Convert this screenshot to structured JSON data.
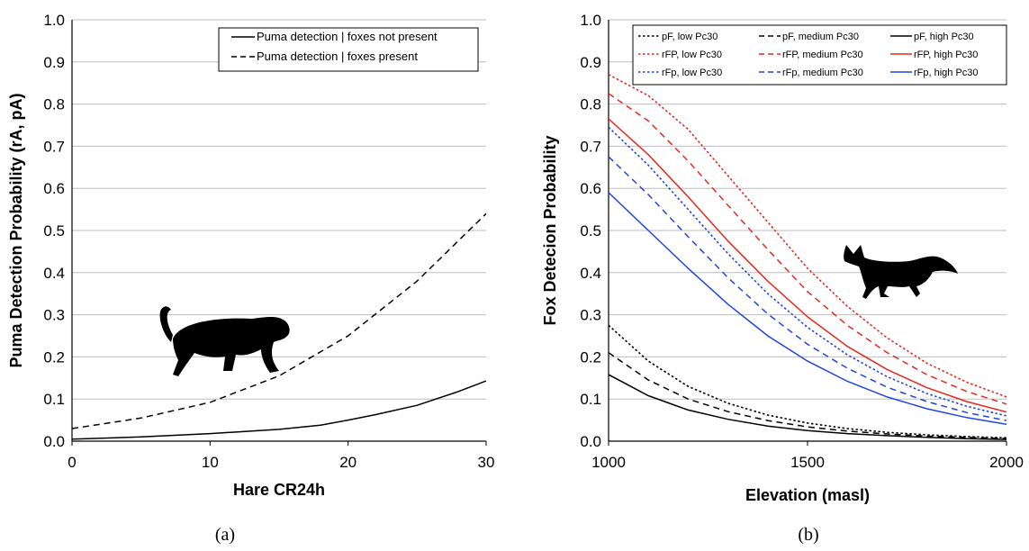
{
  "chart_data": [
    {
      "panel_label": "(a)",
      "type": "line",
      "xlabel": "Hare CR24h",
      "ylabel": "Puma Detection Probability (rA, pA)",
      "xlim": [
        0,
        30
      ],
      "ylim": [
        0,
        1
      ],
      "xticks": [
        "0",
        "10",
        "20",
        "30"
      ],
      "yticks": [
        "0.0",
        "0.1",
        "0.2",
        "0.3",
        "0.4",
        "0.5",
        "0.6",
        "0.7",
        "0.8",
        "0.9",
        "1.0"
      ],
      "grid": "horizontal",
      "legend_position": "top-right",
      "silhouette": "puma",
      "series": [
        {
          "name": "Puma detection | foxes not present",
          "color": "#000000",
          "dash": "solid",
          "x": [
            0,
            5,
            10,
            15,
            18,
            20,
            22,
            25,
            28,
            30
          ],
          "y": [
            0.005,
            0.01,
            0.018,
            0.028,
            0.038,
            0.05,
            0.063,
            0.085,
            0.118,
            0.143
          ]
        },
        {
          "name": "Puma detection |  foxes present",
          "color": "#000000",
          "dash": "dashed",
          "x": [
            0,
            5,
            10,
            15,
            20,
            25,
            30
          ],
          "y": [
            0.03,
            0.055,
            0.092,
            0.155,
            0.25,
            0.38,
            0.54
          ]
        }
      ]
    },
    {
      "panel_label": "(b)",
      "type": "line",
      "xlabel": "Elevation (masl)",
      "ylabel": "Fox Detecion Probability",
      "xlim": [
        1000,
        2000
      ],
      "ylim": [
        0,
        1
      ],
      "xticks": [
        "1000",
        "1500",
        "2000"
      ],
      "yticks": [
        "0.0",
        "0.1",
        "0.2",
        "0.3",
        "0.4",
        "0.5",
        "0.6",
        "0.7",
        "0.8",
        "0.9",
        "1.0"
      ],
      "grid": "horizontal",
      "legend_position": "top",
      "silhouette": "fox",
      "x": [
        1000,
        1100,
        1200,
        1300,
        1400,
        1500,
        1600,
        1700,
        1800,
        1900,
        2000
      ],
      "series": [
        {
          "name": "pF, low Pc30",
          "color": "#000000",
          "dash": "dotted",
          "y": [
            0.275,
            0.19,
            0.13,
            0.09,
            0.062,
            0.043,
            0.03,
            0.021,
            0.015,
            0.011,
            0.008
          ]
        },
        {
          "name": "pF, medium Pc30",
          "color": "#000000",
          "dash": "dashed",
          "y": [
            0.21,
            0.145,
            0.1,
            0.07,
            0.049,
            0.034,
            0.024,
            0.017,
            0.012,
            0.009,
            0.006
          ]
        },
        {
          "name": "pF, high Pc30",
          "color": "#000000",
          "dash": "solid",
          "y": [
            0.158,
            0.108,
            0.074,
            0.052,
            0.036,
            0.025,
            0.018,
            0.013,
            0.009,
            0.006,
            0.004
          ]
        },
        {
          "name": "rFP, low Pc30",
          "color": "#e8281e",
          "dash": "dotted",
          "y": [
            0.87,
            0.82,
            0.74,
            0.63,
            0.52,
            0.41,
            0.32,
            0.245,
            0.185,
            0.14,
            0.105
          ]
        },
        {
          "name": "rFP, medium Pc30",
          "color": "#e8281e",
          "dash": "dashed",
          "y": [
            0.825,
            0.76,
            0.665,
            0.56,
            0.455,
            0.355,
            0.275,
            0.21,
            0.158,
            0.118,
            0.088
          ]
        },
        {
          "name": "rFP, high Pc30",
          "color": "#e8281e",
          "dash": "solid",
          "y": [
            0.765,
            0.68,
            0.58,
            0.475,
            0.38,
            0.295,
            0.225,
            0.17,
            0.127,
            0.094,
            0.069
          ]
        },
        {
          "name": "rFp, low Pc30",
          "color": "#1f44e6",
          "dash": "dotted",
          "y": [
            0.745,
            0.655,
            0.55,
            0.445,
            0.35,
            0.27,
            0.205,
            0.153,
            0.113,
            0.083,
            0.06
          ]
        },
        {
          "name": "rFp, medium Pc30",
          "color": "#1f44e6",
          "dash": "dashed",
          "y": [
            0.675,
            0.585,
            0.485,
            0.388,
            0.302,
            0.23,
            0.173,
            0.128,
            0.094,
            0.068,
            0.049
          ]
        },
        {
          "name": "rFp, high Pc30",
          "color": "#1f44e6",
          "dash": "solid",
          "y": [
            0.59,
            0.5,
            0.41,
            0.325,
            0.25,
            0.19,
            0.142,
            0.105,
            0.077,
            0.056,
            0.04
          ]
        }
      ]
    }
  ]
}
